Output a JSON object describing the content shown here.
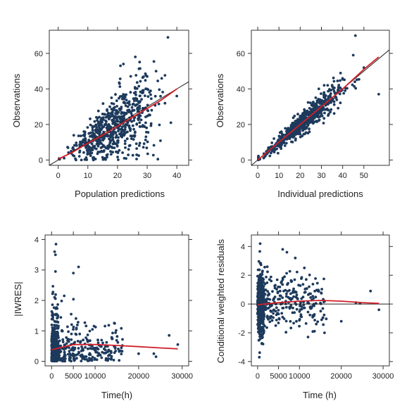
{
  "chart_data": [
    {
      "id": "p1",
      "type": "scatter",
      "xlabel": "Population predictions",
      "ylabel": "Observations",
      "xlim": [
        -3,
        44
      ],
      "ylim": [
        -3,
        73
      ],
      "xticks": [
        0,
        10,
        20,
        30,
        40
      ],
      "yticks": [
        0,
        20,
        40,
        60
      ],
      "reference_line": {
        "type": "identity"
      },
      "trend": {
        "x": [
          0,
          5,
          10,
          15,
          20,
          25,
          30,
          35,
          40
        ],
        "y": [
          0.5,
          4.5,
          9.5,
          14,
          19,
          24,
          29,
          34,
          40
        ]
      },
      "points_summary": "dense cloud, n≈650; Observations ≈ Population predictions with wide scatter; outliers at (37,69),(38,21),(40,36),(26,58),(33,50)"
    },
    {
      "id": "p2",
      "type": "scatter",
      "xlabel": "Individual predictions",
      "ylabel": "Observations",
      "xlim": [
        -3,
        62
      ],
      "ylim": [
        -3,
        73
      ],
      "xticks": [
        0,
        10,
        20,
        30,
        40,
        50
      ],
      "yticks": [
        0,
        20,
        40,
        60
      ],
      "reference_line": {
        "type": "identity"
      },
      "trend": {
        "x": [
          0,
          10,
          20,
          30,
          40,
          50,
          57
        ],
        "y": [
          0,
          10,
          20,
          30,
          40,
          51,
          58
        ]
      },
      "points_summary": "tight cloud along identity, n≈650; outliers at (46,70),(57,37),(45,59)"
    },
    {
      "id": "p3",
      "type": "scatter",
      "xlabel": "Time(h)",
      "ylabel": "|IWRES|",
      "xlim": [
        -1500,
        31500
      ],
      "ylim": [
        -0.15,
        4.15
      ],
      "xticks": [
        0,
        5000,
        10000,
        20000,
        30000
      ],
      "yticks": [
        0,
        1,
        2,
        3,
        4
      ],
      "trend": {
        "x": [
          0,
          5000,
          10000,
          15000,
          20000,
          25000,
          29000
        ],
        "y": [
          0.38,
          0.55,
          0.55,
          0.52,
          0.48,
          0.44,
          0.41
        ]
      },
      "points_summary": "dense column near time 0–1500 h, sparse scatter up to 29000 h; max ≈3.85 near 1000 h"
    },
    {
      "id": "p4",
      "type": "scatter",
      "xlabel": "Time (h)",
      "ylabel": "Conditional weighted residuals",
      "xlim": [
        -1500,
        31500
      ],
      "ylim": [
        -4.3,
        4.8
      ],
      "xticks": [
        0,
        5000,
        10000,
        20000,
        30000
      ],
      "yticks": [
        -4,
        -2,
        0,
        2,
        4
      ],
      "reference_line": {
        "type": "horizontal",
        "y": 0
      },
      "trend": {
        "x": [
          0,
          5000,
          10000,
          15000,
          20000,
          25000,
          29000
        ],
        "y": [
          -0.05,
          0.1,
          0.2,
          0.25,
          0.2,
          0.1,
          0.05
        ]
      },
      "points_summary": "dense column near time 0–1500 h spanning -3.8 to 4.2, sparse scatter to 29000 h"
    }
  ]
}
